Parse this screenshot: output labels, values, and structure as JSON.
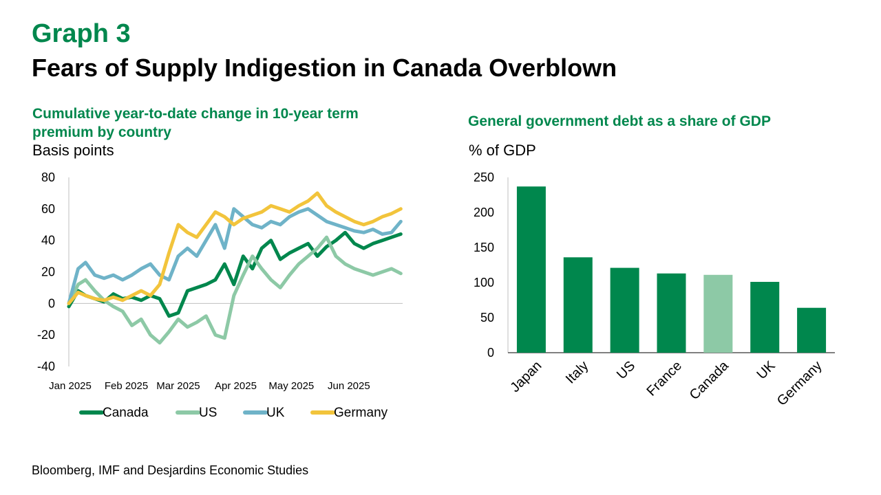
{
  "header": {
    "kicker": "Graph 3",
    "title": "Fears of Supply Indigestion in Canada Overblown"
  },
  "colors": {
    "canada": "#00874d",
    "us": "#8dc9a6",
    "uk": "#6fb3c8",
    "germany": "#f2c43c",
    "brand_green": "#00874d"
  },
  "chart_data": [
    {
      "type": "line",
      "title": "Cumulative year-to-date change in 10-year term premium by country",
      "ylabel": "Basis points",
      "ylim": [
        -40,
        80
      ],
      "yticks": [
        80,
        60,
        40,
        20,
        0,
        -20,
        -40
      ],
      "xlim": [
        "2025-01-01",
        "2025-06-30"
      ],
      "xticks": [
        {
          "date": "2025-01-01",
          "label": "Jan 2025"
        },
        {
          "date": "2025-02-01",
          "label": "Feb 2025"
        },
        {
          "date": "2025-03-01",
          "label": "Mar 2025"
        },
        {
          "date": "2025-04-01",
          "label": "Apr 2025"
        },
        {
          "date": "2025-05-01",
          "label": "May 2025"
        },
        {
          "date": "2025-06-01",
          "label": "Jun 2025"
        }
      ],
      "legend_position": "bottom",
      "x": [
        "2025-01-01",
        "2025-01-06",
        "2025-01-10",
        "2025-01-15",
        "2025-01-20",
        "2025-01-25",
        "2025-01-30",
        "2025-02-04",
        "2025-02-09",
        "2025-02-14",
        "2025-02-19",
        "2025-02-24",
        "2025-03-01",
        "2025-03-06",
        "2025-03-11",
        "2025-03-16",
        "2025-03-21",
        "2025-03-26",
        "2025-03-31",
        "2025-04-05",
        "2025-04-10",
        "2025-04-15",
        "2025-04-20",
        "2025-04-25",
        "2025-04-30",
        "2025-05-05",
        "2025-05-10",
        "2025-05-15",
        "2025-05-20",
        "2025-05-25",
        "2025-05-30",
        "2025-06-04",
        "2025-06-09",
        "2025-06-14",
        "2025-06-19",
        "2025-06-24",
        "2025-06-29"
      ],
      "series": [
        {
          "name": "Canada",
          "color": "#00874d",
          "values": [
            -2,
            8,
            5,
            3,
            1,
            6,
            3,
            4,
            2,
            5,
            3,
            -8,
            -6,
            8,
            10,
            12,
            15,
            25,
            12,
            30,
            22,
            35,
            40,
            28,
            32,
            35,
            38,
            30,
            36,
            40,
            45,
            38,
            35,
            38,
            40,
            42,
            44
          ]
        },
        {
          "name": "US",
          "color": "#8dc9a6",
          "values": [
            0,
            12,
            15,
            8,
            2,
            -2,
            -5,
            -14,
            -10,
            -20,
            -25,
            -18,
            -10,
            -15,
            -12,
            -8,
            -20,
            -22,
            5,
            18,
            30,
            22,
            15,
            10,
            18,
            25,
            30,
            35,
            42,
            30,
            25,
            22,
            20,
            18,
            20,
            22,
            19
          ]
        },
        {
          "name": "UK",
          "color": "#6fb3c8",
          "values": [
            0,
            22,
            26,
            18,
            16,
            18,
            15,
            18,
            22,
            25,
            18,
            15,
            30,
            35,
            30,
            40,
            50,
            35,
            60,
            55,
            50,
            48,
            52,
            50,
            55,
            58,
            60,
            56,
            52,
            50,
            48,
            46,
            45,
            47,
            44,
            45,
            52
          ]
        },
        {
          "name": "Germany",
          "color": "#f2c43c",
          "values": [
            0,
            7,
            5,
            3,
            2,
            4,
            2,
            5,
            8,
            5,
            12,
            32,
            50,
            45,
            42,
            50,
            58,
            55,
            50,
            54,
            56,
            58,
            62,
            60,
            58,
            62,
            65,
            70,
            62,
            58,
            55,
            52,
            50,
            52,
            55,
            57,
            60
          ]
        }
      ]
    },
    {
      "type": "bar",
      "title": "General government debt as a share of GDP",
      "ylabel": "% of GDP",
      "ylim": [
        0,
        250
      ],
      "yticks": [
        250,
        200,
        150,
        100,
        50,
        0
      ],
      "categories": [
        "Japan",
        "Italy",
        "US",
        "France",
        "Canada",
        "UK",
        "Germany"
      ],
      "values": [
        237,
        136,
        121,
        113,
        111,
        101,
        64
      ],
      "colors": [
        "#00874d",
        "#00874d",
        "#00874d",
        "#00874d",
        "#8dc9a6",
        "#00874d",
        "#00874d"
      ]
    }
  ],
  "source": "Bloomberg, IMF and Desjardins Economic Studies"
}
